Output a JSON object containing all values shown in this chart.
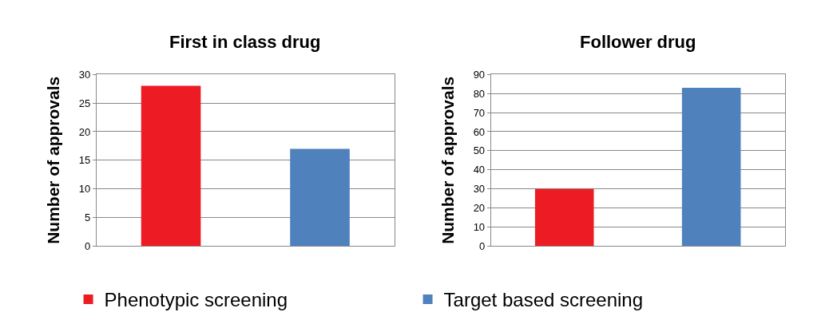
{
  "chart_data": [
    {
      "type": "bar",
      "title": "First in class drug",
      "ylabel": "Number of approvals",
      "categories": [
        null,
        null
      ],
      "series": [
        {
          "name": "Phenotypic screening",
          "color": "#ed1c24",
          "values": [
            28,
            null
          ]
        },
        {
          "name": "Target based screening",
          "color": "#4f81bd",
          "values": [
            null,
            17
          ]
        }
      ],
      "ylim": [
        0,
        30
      ],
      "yticks": [
        0,
        5,
        10,
        15,
        20,
        25,
        30
      ],
      "grid": "y",
      "legend": "bottom"
    },
    {
      "type": "bar",
      "title": "Follower drug",
      "ylabel": "Number of approvals",
      "categories": [
        null,
        null
      ],
      "series": [
        {
          "color": "#ed1c24",
          "values": [
            30,
            null
          ]
        },
        {
          "color": "#4f81bd",
          "values": [
            null,
            83
          ]
        }
      ],
      "ylim": [
        0,
        90
      ],
      "yticks": [
        0,
        10,
        20,
        30,
        40,
        50,
        60,
        70,
        80,
        90
      ],
      "grid": "y"
    }
  ]
}
